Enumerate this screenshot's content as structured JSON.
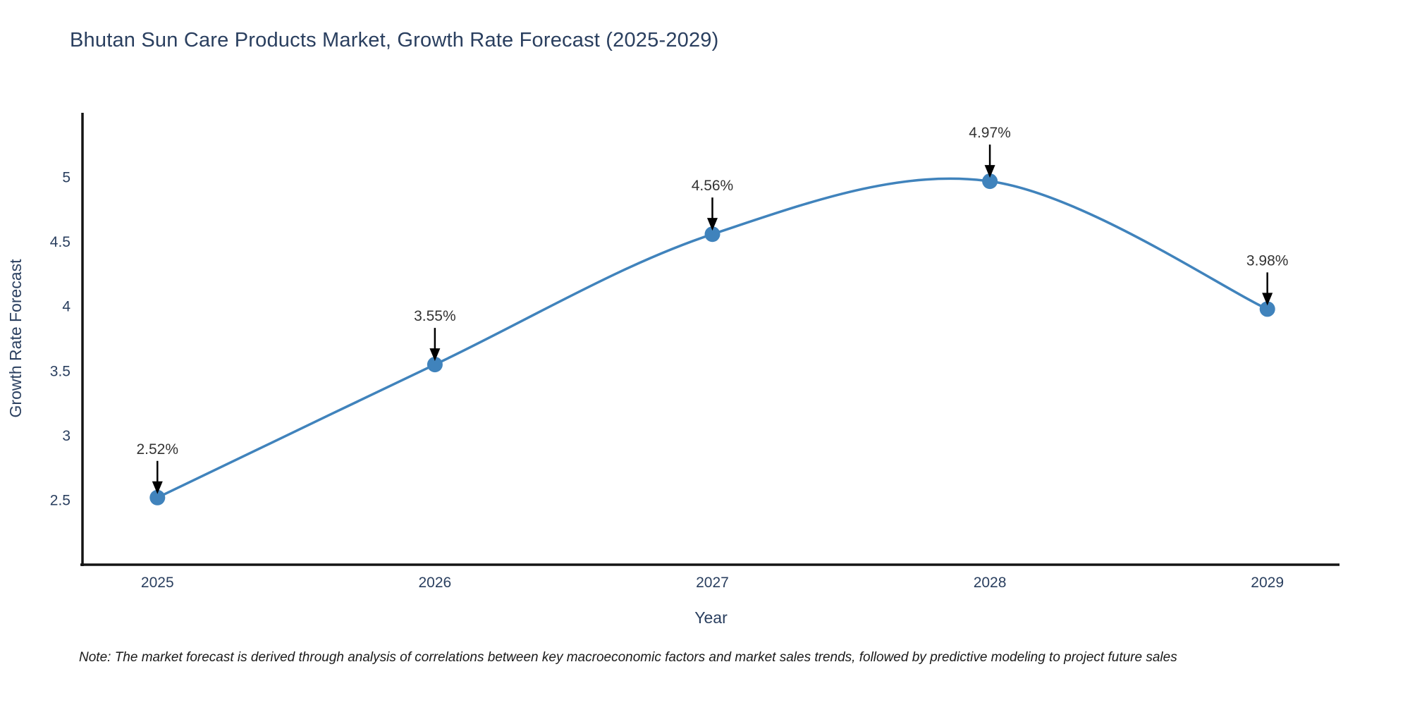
{
  "footnote": "Note: The market forecast is derived through analysis of correlations between key macroeconomic factors and market sales trends, followed by predictive modeling to project future sales",
  "colors": {
    "line": "#4083bc",
    "marker": "#4083bc",
    "title_text": "#2a3f5f",
    "axis_text": "#2a3f5f",
    "annotation_text": "#333333",
    "arrow": "#000000",
    "spine": "#141414",
    "background": "#ffffff"
  },
  "chart_data": {
    "type": "line",
    "title": "Bhutan Sun Care Products Market, Growth Rate Forecast (2025-2029)",
    "x": [
      2025,
      2026,
      2027,
      2028,
      2029
    ],
    "xtick_labels": [
      "2025",
      "2026",
      "2027",
      "2028",
      "2029"
    ],
    "series": [
      {
        "name": "Growth Rate Forecast",
        "values": [
          2.52,
          3.55,
          4.56,
          4.97,
          3.98
        ]
      }
    ],
    "point_labels": [
      "2.52%",
      "3.55%",
      "4.56%",
      "4.97%",
      "3.98%"
    ],
    "xlabel": "Year",
    "ylabel": "Growth Rate Forecast",
    "yticks": [
      2.5,
      3.0,
      3.5,
      4.0,
      4.5,
      5.0
    ],
    "ytick_labels": [
      "2.5",
      "3",
      "3.5",
      "4",
      "4.5",
      "5"
    ],
    "ylim": [
      2.0,
      5.5
    ],
    "xlim": [
      2024.73,
      2029.26
    ],
    "grid": false,
    "legend_position": "none",
    "line_shape": "spline",
    "marker": "circle",
    "annotation_arrows": true
  }
}
